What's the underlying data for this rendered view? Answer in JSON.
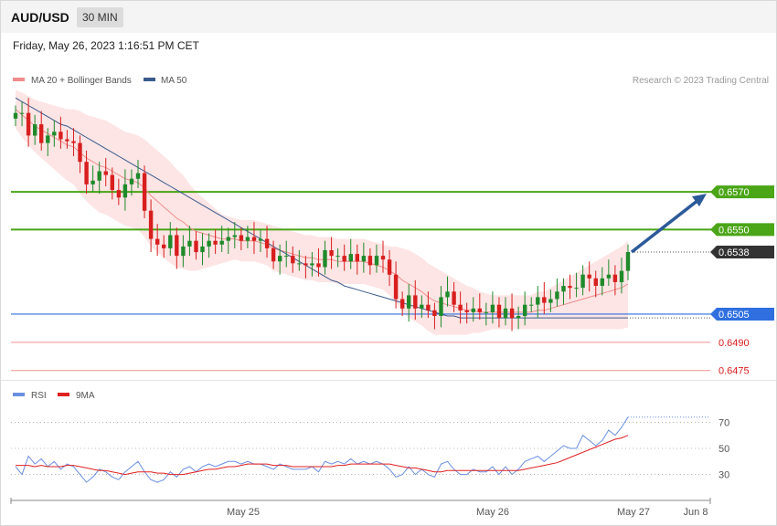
{
  "header": {
    "symbol": "AUD/USD",
    "timeframe": "30 MIN",
    "datetime": "Friday, May 26, 2023 1:16:51 PM CET"
  },
  "legend": {
    "ma20": "MA 20 + Bollinger Bands",
    "ma50": "MA 50",
    "rsi": "RSI",
    "rsi_ma": "9MA",
    "copyright": "Research © 2023 Trading Central"
  },
  "colors": {
    "up": "#1f8a2b",
    "down": "#d81e1e",
    "ma20": "#f08c8c",
    "ma50": "#3a5a8c",
    "band_fill": "#fde0e0",
    "resistance": "#4aa517",
    "support": "#2f6fe0",
    "support_minor": "#f09090",
    "arrow": "#2c5a98",
    "rsi": "#6b8fe0",
    "rsi_ma": "#e02020"
  },
  "chart_data": [
    {
      "type": "candlestick",
      "title": "AUD/USD",
      "ylim": [
        0.647,
        0.6624
      ],
      "x_labels": [
        "May 25",
        "May 26",
        "May 27",
        "Jun 8"
      ],
      "current_price": 0.6538,
      "levels": [
        {
          "label": "0.6570",
          "value": 0.657,
          "kind": "resistance"
        },
        {
          "label": "0.6550",
          "value": 0.655,
          "kind": "resistance"
        },
        {
          "label": "0.6538",
          "value": 0.6538,
          "kind": "current"
        },
        {
          "label": "0.6505",
          "value": 0.6505,
          "kind": "pivot"
        },
        {
          "label": "0.6490",
          "value": 0.649,
          "kind": "support"
        },
        {
          "label": "0.6475",
          "value": 0.6475,
          "kind": "support"
        }
      ],
      "close": [
        0.6612,
        0.6612,
        0.66,
        0.6606,
        0.6596,
        0.66,
        0.6602,
        0.6598,
        0.6597,
        0.6596,
        0.6586,
        0.6574,
        0.6576,
        0.6581,
        0.6579,
        0.6571,
        0.6567,
        0.6574,
        0.6577,
        0.658,
        0.656,
        0.6545,
        0.6542,
        0.654,
        0.6547,
        0.6536,
        0.6541,
        0.6544,
        0.6538,
        0.6541,
        0.6544,
        0.6542,
        0.6544,
        0.6546,
        0.6547,
        0.6544,
        0.6546,
        0.6544,
        0.6545,
        0.654,
        0.6533,
        0.6536,
        0.6536,
        0.6532,
        0.6532,
        0.6531,
        0.6532,
        0.653,
        0.6539,
        0.6536,
        0.6536,
        0.6533,
        0.6537,
        0.6533,
        0.6536,
        0.6531,
        0.6536,
        0.6534,
        0.6526,
        0.6513,
        0.6508,
        0.6515,
        0.6508,
        0.651,
        0.6507,
        0.6504,
        0.6514,
        0.6517,
        0.651,
        0.6507,
        0.6506,
        0.6508,
        0.6506,
        0.6506,
        0.651,
        0.6503,
        0.6508,
        0.6503,
        0.6504,
        0.651,
        0.651,
        0.6514,
        0.6511,
        0.6513,
        0.6517,
        0.652,
        0.6519,
        0.6519,
        0.6526,
        0.6524,
        0.652,
        0.6524,
        0.6526,
        0.6522,
        0.6528,
        0.6538
      ],
      "ma20": [
        0.6614,
        0.6611,
        0.6608,
        0.6605,
        0.6603,
        0.6601,
        0.6599,
        0.6597,
        0.6595,
        0.6594,
        0.6591,
        0.6588,
        0.6586,
        0.6584,
        0.6583,
        0.6581,
        0.6579,
        0.6577,
        0.6576,
        0.6575,
        0.6572,
        0.6568,
        0.6565,
        0.6562,
        0.6559,
        0.6556,
        0.6554,
        0.6551,
        0.6549,
        0.6548,
        0.6547,
        0.6546,
        0.6545,
        0.6545,
        0.6545,
        0.6544,
        0.6544,
        0.6544,
        0.6543,
        0.6542,
        0.654,
        0.6539,
        0.6538,
        0.6537,
        0.6536,
        0.6535,
        0.6535,
        0.6534,
        0.6534,
        0.6534,
        0.6533,
        0.6533,
        0.6533,
        0.6533,
        0.6533,
        0.6532,
        0.6531,
        0.653,
        0.6528,
        0.6526,
        0.6523,
        0.6521,
        0.6519,
        0.6517,
        0.6514,
        0.6512,
        0.6511,
        0.651,
        0.6509,
        0.6508,
        0.6507,
        0.6507,
        0.6506,
        0.6506,
        0.6506,
        0.6506,
        0.6506,
        0.6506,
        0.6506,
        0.6506,
        0.6506,
        0.6507,
        0.6507,
        0.6508,
        0.6509,
        0.651,
        0.6511,
        0.6512,
        0.6513,
        0.6514,
        0.6515,
        0.6516,
        0.6517,
        0.6518,
        0.6519,
        0.6521
      ],
      "ma50": [
        0.662,
        0.6618,
        0.6616,
        0.6614,
        0.6612,
        0.661,
        0.6608,
        0.6606,
        0.6605,
        0.6603,
        0.6601,
        0.6599,
        0.6597,
        0.6595,
        0.6593,
        0.6591,
        0.6589,
        0.6587,
        0.6585,
        0.6583,
        0.6581,
        0.6579,
        0.6577,
        0.6575,
        0.6573,
        0.6571,
        0.6569,
        0.6567,
        0.6565,
        0.6563,
        0.6561,
        0.6559,
        0.6557,
        0.6555,
        0.6553,
        0.6551,
        0.6549,
        0.6547,
        0.6545,
        0.6543,
        0.6541,
        0.6539,
        0.6537,
        0.6535,
        0.6533,
        0.6531,
        0.6529,
        0.6527,
        0.6525,
        0.6523,
        0.6522,
        0.652,
        0.6519,
        0.6518,
        0.6517,
        0.6516,
        0.6515,
        0.6514,
        0.6513,
        0.6512,
        0.6511,
        0.651,
        0.6509,
        0.6508,
        0.6507,
        0.6506,
        0.6505,
        0.6504,
        0.6504,
        0.6503,
        0.6503,
        0.6503,
        0.6503,
        0.6503,
        0.6503,
        0.6503,
        0.6503,
        0.6503,
        0.6503,
        0.6503,
        0.6503,
        0.6503,
        0.6503,
        0.6503,
        0.6503,
        0.6503,
        0.6503,
        0.6503,
        0.6503,
        0.6503,
        0.6503,
        0.6503,
        0.6503,
        0.6503,
        0.6503,
        0.6503
      ],
      "band_width": [
        0.001,
        0.0012,
        0.0013,
        0.0014,
        0.0015,
        0.0016,
        0.0017,
        0.0018,
        0.0019,
        0.002,
        0.0022,
        0.0023,
        0.0024,
        0.0025,
        0.0025,
        0.0025,
        0.0025,
        0.0025,
        0.0025,
        0.0025,
        0.0026,
        0.0027,
        0.0027,
        0.0027,
        0.0027,
        0.0026,
        0.0025,
        0.0023,
        0.0021,
        0.0019,
        0.0017,
        0.0015,
        0.0013,
        0.0012,
        0.0011,
        0.0011,
        0.0011,
        0.0011,
        0.0011,
        0.0011,
        0.0012,
        0.0012,
        0.0012,
        0.0012,
        0.0012,
        0.0012,
        0.0012,
        0.0012,
        0.0012,
        0.0012,
        0.0012,
        0.0012,
        0.0012,
        0.0012,
        0.0012,
        0.0012,
        0.0012,
        0.0012,
        0.0013,
        0.0015,
        0.0017,
        0.0018,
        0.0018,
        0.0018,
        0.0018,
        0.0018,
        0.0017,
        0.0016,
        0.0015,
        0.0014,
        0.0013,
        0.0012,
        0.0011,
        0.001,
        0.0009,
        0.0009,
        0.0009,
        0.0009,
        0.0009,
        0.0009,
        0.0009,
        0.001,
        0.001,
        0.0011,
        0.0012,
        0.0013,
        0.0014,
        0.0015,
        0.0016,
        0.0017,
        0.0018,
        0.0019,
        0.002,
        0.0021,
        0.0022,
        0.0023
      ]
    },
    {
      "type": "line",
      "title": "RSI",
      "ylim": [
        15,
        85
      ],
      "y_ticks": [
        30,
        50,
        70
      ],
      "y_tick_labels": [
        "30",
        "50",
        "70"
      ],
      "series": [
        {
          "name": "RSI",
          "values": [
            36,
            30,
            44,
            38,
            42,
            36,
            40,
            34,
            38,
            36,
            30,
            24,
            28,
            34,
            32,
            28,
            26,
            32,
            36,
            40,
            32,
            26,
            24,
            26,
            32,
            28,
            34,
            36,
            32,
            36,
            38,
            36,
            38,
            40,
            40,
            38,
            40,
            38,
            38,
            36,
            34,
            38,
            36,
            34,
            34,
            34,
            36,
            32,
            40,
            38,
            40,
            38,
            42,
            38,
            40,
            38,
            40,
            38,
            34,
            28,
            30,
            36,
            30,
            34,
            30,
            28,
            38,
            40,
            34,
            30,
            30,
            34,
            32,
            32,
            36,
            30,
            36,
            30,
            34,
            40,
            42,
            44,
            40,
            44,
            48,
            52,
            50,
            50,
            60,
            56,
            52,
            56,
            64,
            60,
            66,
            74
          ]
        },
        {
          "name": "9MA",
          "values": [
            37,
            37,
            37,
            36,
            37,
            36,
            36,
            36,
            37,
            37,
            36,
            35,
            34,
            33,
            33,
            32,
            31,
            30,
            31,
            32,
            32,
            32,
            31,
            31,
            30,
            30,
            30,
            31,
            32,
            33,
            34,
            34,
            35,
            36,
            36,
            37,
            38,
            38,
            38,
            38,
            37,
            37,
            37,
            36,
            36,
            36,
            36,
            36,
            36,
            36,
            37,
            37,
            38,
            38,
            38,
            38,
            38,
            38,
            38,
            37,
            36,
            35,
            35,
            34,
            33,
            32,
            32,
            33,
            33,
            33,
            33,
            33,
            33,
            33,
            33,
            33,
            33,
            33,
            33,
            34,
            35,
            36,
            37,
            38,
            39,
            41,
            43,
            45,
            47,
            49,
            51,
            53,
            55,
            57,
            58,
            60
          ]
        }
      ],
      "x_labels": [
        "May 25",
        "May 26",
        "May 27",
        "Jun 8"
      ]
    }
  ]
}
